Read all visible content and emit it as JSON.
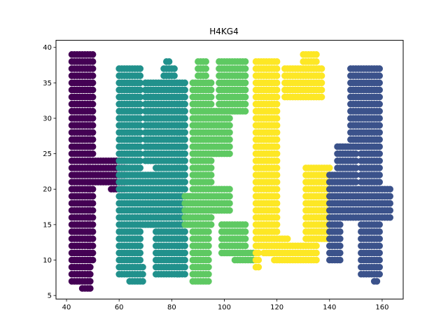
{
  "chart_data": {
    "type": "scatter",
    "title": "H4KG4",
    "xlabel": "",
    "ylabel": "",
    "xlim": [
      36,
      168
    ],
    "ylim": [
      4.5,
      41
    ],
    "xticks": [
      40,
      60,
      80,
      100,
      120,
      140,
      160
    ],
    "yticks": [
      5,
      10,
      15,
      20,
      25,
      30,
      35,
      40
    ],
    "grid": false,
    "legend": "none",
    "colors": {
      "H": "#440154",
      "4a": "#21918c",
      "K": "#5ec962",
      "G": "#fde725",
      "4b": "#3b528b"
    },
    "series": [
      {
        "color_key": "H",
        "strokes": [
          {
            "x": [
              42,
              50
            ],
            "y": [
              10,
              39
            ]
          },
          {
            "x": [
              50,
              62
            ],
            "y": [
              21,
              24
            ]
          },
          {
            "x": [
              42,
              48
            ],
            "y": [
              7,
              12
            ]
          },
          {
            "x": [
              46,
              49
            ],
            "y": [
              6,
              9
            ]
          },
          {
            "x": [
              57,
              62
            ],
            "y": [
              20,
              21
            ]
          }
        ]
      },
      {
        "color_key": "4a",
        "strokes": [
          {
            "x": [
              60,
              68
            ],
            "y": [
              8,
              37
            ]
          },
          {
            "x": [
              64,
              69
            ],
            "y": [
              7,
              9
            ]
          },
          {
            "x": [
              68,
              80
            ],
            "y": [
              21,
              22
            ]
          },
          {
            "x": [
              60,
              84
            ],
            "y": [
              15,
              20
            ]
          },
          {
            "x": [
              70,
              75
            ],
            "y": [
              24,
              35
            ]
          },
          {
            "x": [
              74,
              85
            ],
            "y": [
              8,
              35
            ]
          },
          {
            "x": [
              77,
              81
            ],
            "y": [
              36,
              37
            ]
          },
          {
            "x": [
              78,
              79
            ],
            "y": [
              38,
              38
            ]
          }
        ]
      },
      {
        "color_key": "K",
        "strokes": [
          {
            "x": [
              85,
              95
            ],
            "y": [
              15,
              19
            ]
          },
          {
            "x": [
              90,
              94
            ],
            "y": [
              7,
              15
            ]
          },
          {
            "x": [
              96,
              102
            ],
            "y": [
              25,
              31
            ]
          },
          {
            "x": [
              88,
              92
            ],
            "y": [
              7,
              31
            ]
          },
          {
            "x": [
              88,
              95
            ],
            "y": [
              19,
              35
            ]
          },
          {
            "x": [
              90,
              93
            ],
            "y": [
              36,
              38
            ]
          },
          {
            "x": [
              98,
              108
            ],
            "y": [
              31,
              38
            ]
          },
          {
            "x": [
              95,
              102
            ],
            "y": [
              17,
              20
            ]
          },
          {
            "x": [
              99,
              108
            ],
            "y": [
              11,
              15
            ]
          },
          {
            "x": [
              104,
              111
            ],
            "y": [
              10,
              11
            ]
          }
        ]
      },
      {
        "color_key": "G",
        "strokes": [
          {
            "x": [
              112,
              120
            ],
            "y": [
              12,
              38
            ]
          },
          {
            "x": [
              115,
              124
            ],
            "y": [
              11,
              13
            ]
          },
          {
            "x": [
              119,
              135
            ],
            "y": [
              10,
              12
            ]
          },
          {
            "x": [
              123,
              137
            ],
            "y": [
              33,
              37
            ]
          },
          {
            "x": [
              130,
              135
            ],
            "y": [
              38,
              39
            ]
          },
          {
            "x": [
              131,
              140
            ],
            "y": [
              13,
              23
            ]
          },
          {
            "x": [
              112,
              113
            ],
            "y": [
              9,
              11
            ]
          }
        ]
      },
      {
        "color_key": "4b",
        "strokes": [
          {
            "x": [
              140,
              144
            ],
            "y": [
              10,
              22
            ]
          },
          {
            "x": [
              143,
              150
            ],
            "y": [
              20,
              26
            ]
          },
          {
            "x": [
              148,
              159
            ],
            "y": [
              26,
              37
            ]
          },
          {
            "x": [
              140,
              163
            ],
            "y": [
              16,
              20
            ]
          },
          {
            "x": [
              152,
              159
            ],
            "y": [
              8,
              34
            ]
          },
          {
            "x": [
              157,
              158
            ],
            "y": [
              7,
              7
            ]
          }
        ]
      }
    ]
  }
}
